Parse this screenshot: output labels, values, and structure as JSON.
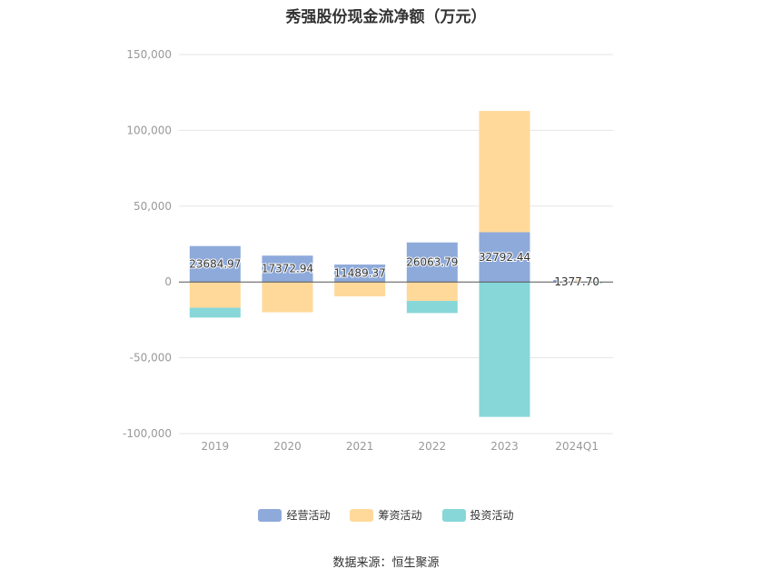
{
  "chart_data": {
    "type": "bar",
    "stacked": true,
    "title": "秀强股份现金流净额（万元）",
    "categories": [
      "2019",
      "2020",
      "2021",
      "2022",
      "2023",
      "2024Q1"
    ],
    "series": [
      {
        "name": "经营活动",
        "color": "#8eaadb",
        "values": [
          23684.97,
          17372.94,
          11489.37,
          26063.79,
          32792.44,
          1377.7
        ]
      },
      {
        "name": "筹资活动",
        "color": "#ffd99a",
        "values": [
          -17000,
          -20000,
          -9500,
          -12500,
          80000,
          300
        ]
      },
      {
        "name": "投资活动",
        "color": "#87d7d9",
        "values": [
          -6500,
          0,
          0,
          -8000,
          -89000,
          -500
        ]
      }
    ],
    "data_labels": [
      "23684.97",
      "17372.94",
      "11489.37",
      "26063.79",
      "32792.44",
      "1377.70"
    ],
    "y_ticks": [
      "150,000",
      "100,000",
      "50,000",
      "0",
      "-50,000",
      "-100,000"
    ],
    "ylim": [
      -100000,
      150000
    ],
    "grid": true,
    "legend_position": "bottom"
  },
  "source_label": "数据来源：恒生聚源"
}
